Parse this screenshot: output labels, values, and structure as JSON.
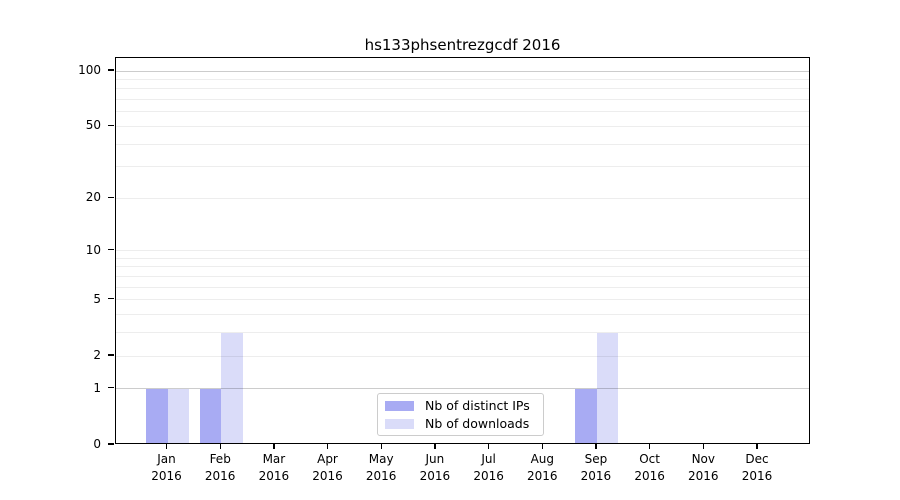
{
  "chart_data": {
    "type": "bar",
    "title": "hs133phsentrezgcdf 2016",
    "categories": [
      "Jan 2016",
      "Feb 2016",
      "Mar 2016",
      "Apr 2016",
      "May 2016",
      "Jun 2016",
      "Jul 2016",
      "Aug 2016",
      "Sep 2016",
      "Oct 2016",
      "Nov 2016",
      "Dec 2016"
    ],
    "series": [
      {
        "name": "Nb of distinct IPs",
        "color": "#a8abf3",
        "values": [
          1,
          1,
          0,
          0,
          0,
          0,
          0,
          0,
          1,
          0,
          0,
          0
        ]
      },
      {
        "name": "Nb of downloads",
        "color": "#dadcf9",
        "values": [
          1,
          3,
          0,
          0,
          0,
          0,
          0,
          0,
          3,
          0,
          0,
          0
        ]
      }
    ],
    "xlabel": "",
    "ylabel": "",
    "yscale": "log1p",
    "ylim": [
      0,
      118
    ],
    "yticks": [
      0,
      1,
      2,
      5,
      10,
      20,
      50,
      100
    ],
    "grid": {
      "on": true,
      "minor_values": [
        2,
        3,
        4,
        5,
        6,
        7,
        8,
        9,
        10,
        20,
        30,
        40,
        50,
        60,
        70,
        80,
        90
      ],
      "major_values": [
        1,
        100
      ],
      "minor_color": "rgba(0,0,0,0.07)",
      "major_color": "rgba(0,0,0,0.20)"
    },
    "legend_position": "lower center",
    "colors": {
      "background": "#ffffff",
      "axis": "#000000",
      "text": "#000000"
    }
  }
}
